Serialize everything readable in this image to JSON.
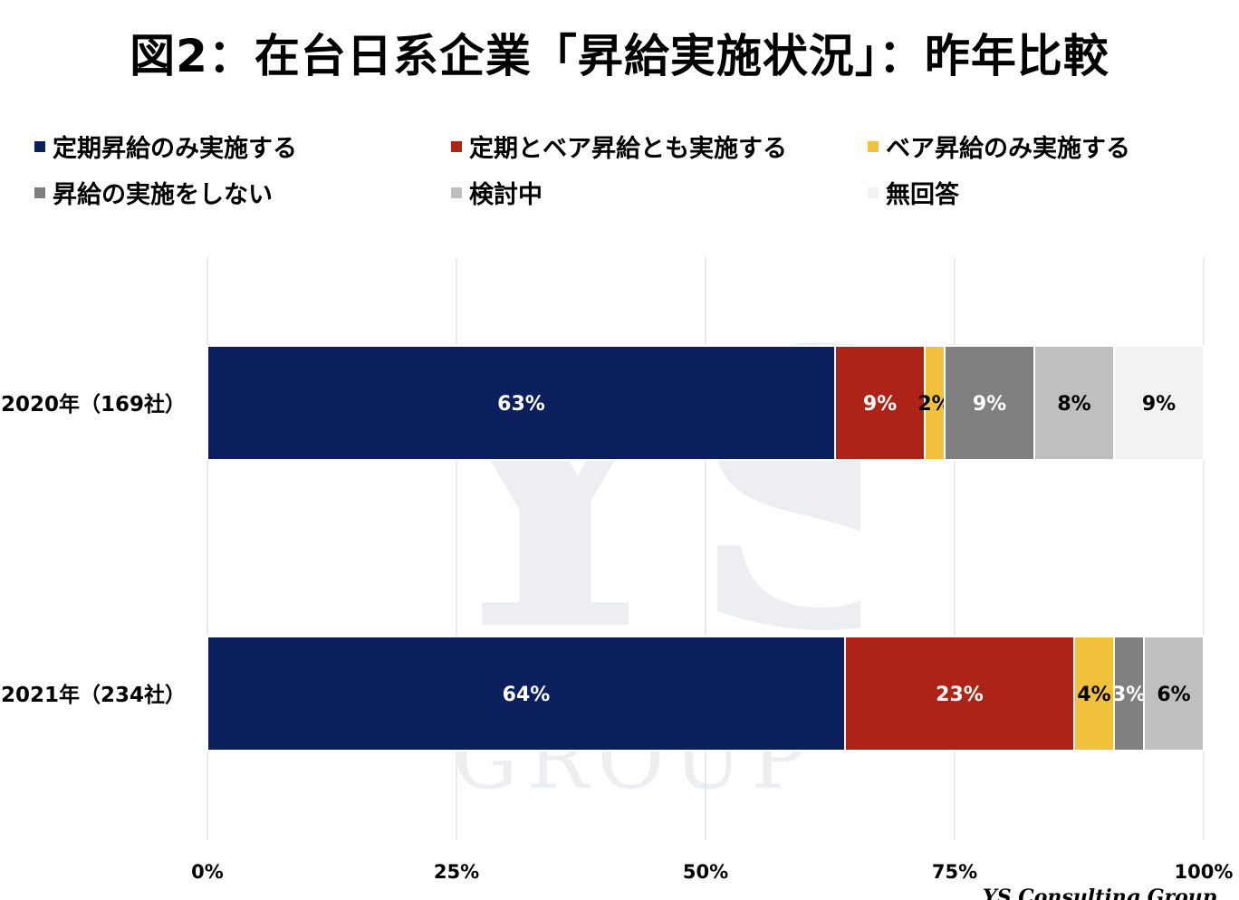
{
  "chart_data": {
    "type": "bar",
    "orientation": "horizontal",
    "stacked": true,
    "title": "図2：在台日系企業「昇給実施状況」：昨年比較",
    "categories": [
      "2020年（169社）",
      "2021年（234社）"
    ],
    "series": [
      {
        "name": "定期昇給のみ実施する",
        "color": "#0b1f5c",
        "values": [
          63,
          64
        ],
        "labels": [
          "63%",
          "64%"
        ]
      },
      {
        "name": "定期とベア昇給とも実施する",
        "color": "#ad2318",
        "values": [
          9,
          23
        ],
        "labels": [
          "9%",
          "23%"
        ]
      },
      {
        "name": "ベア昇給のみ実施する",
        "color": "#f2c13c",
        "values": [
          2,
          4
        ],
        "labels": [
          "2%",
          "4%"
        ]
      },
      {
        "name": "昇給の実施をしない",
        "color": "#7f7f7f",
        "values": [
          9,
          3
        ],
        "labels": [
          "9%",
          "3%"
        ]
      },
      {
        "name": "検討中",
        "color": "#bfbfbf",
        "values": [
          8,
          6
        ],
        "labels": [
          "8%",
          "6%"
        ]
      },
      {
        "name": "無回答",
        "color": "#f2f2f2",
        "values": [
          9,
          0
        ],
        "labels": [
          "9%",
          ""
        ]
      }
    ],
    "xlim": [
      0,
      100
    ],
    "xticks": [
      "0%",
      "25%",
      "50%",
      "75%",
      "100%"
    ],
    "grid": true,
    "legend_position": "top"
  },
  "footer": {
    "brand": "YS Consulting Group"
  }
}
